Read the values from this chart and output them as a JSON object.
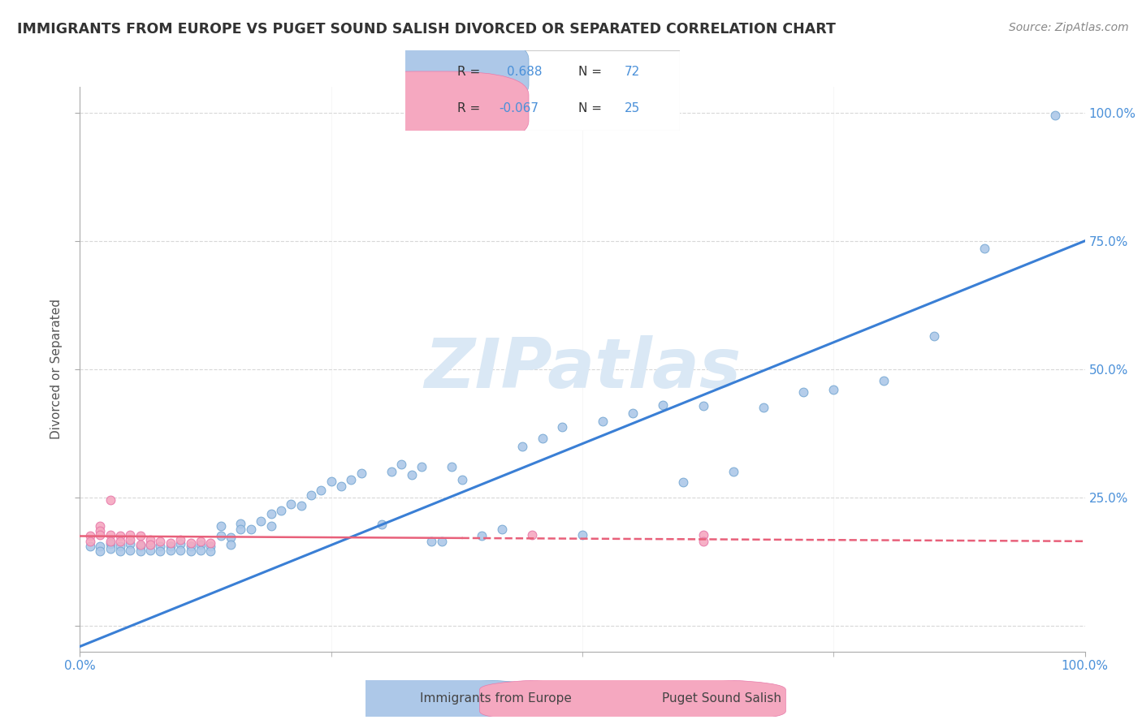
{
  "title": "IMMIGRANTS FROM EUROPE VS PUGET SOUND SALISH DIVORCED OR SEPARATED CORRELATION CHART",
  "source_text": "Source: ZipAtlas.com",
  "ylabel": "Divorced or Separated",
  "blue_R": 0.688,
  "blue_N": 72,
  "pink_R": -0.067,
  "pink_N": 25,
  "blue_color": "#adc8e8",
  "pink_color": "#f5a8c0",
  "blue_edge_color": "#7aaad4",
  "pink_edge_color": "#e87aaa",
  "blue_line_color": "#3a7fd5",
  "pink_line_color": "#e8607a",
  "watermark_text": "ZIPatlas",
  "watermark_color": "#dae8f5",
  "legend_border_color": "#cccccc",
  "grid_color": "#d8d8d8",
  "tick_label_color": "#4a90d9",
  "title_color": "#333333",
  "source_color": "#888888",
  "axis_label_color": "#555555",
  "blue_x": [
    0.01,
    0.02,
    0.02,
    0.03,
    0.03,
    0.04,
    0.04,
    0.05,
    0.05,
    0.06,
    0.06,
    0.07,
    0.07,
    0.08,
    0.08,
    0.09,
    0.09,
    0.1,
    0.1,
    0.11,
    0.11,
    0.12,
    0.12,
    0.13,
    0.13,
    0.14,
    0.14,
    0.15,
    0.15,
    0.16,
    0.16,
    0.17,
    0.18,
    0.19,
    0.19,
    0.2,
    0.21,
    0.22,
    0.23,
    0.24,
    0.25,
    0.26,
    0.27,
    0.28,
    0.3,
    0.31,
    0.32,
    0.33,
    0.34,
    0.35,
    0.36,
    0.37,
    0.38,
    0.4,
    0.42,
    0.44,
    0.46,
    0.48,
    0.5,
    0.52,
    0.55,
    0.58,
    0.6,
    0.62,
    0.65,
    0.68,
    0.72,
    0.75,
    0.8,
    0.85,
    0.9,
    0.97
  ],
  "blue_y": [
    0.155,
    0.155,
    0.145,
    0.16,
    0.15,
    0.155,
    0.145,
    0.16,
    0.148,
    0.155,
    0.145,
    0.158,
    0.148,
    0.155,
    0.145,
    0.155,
    0.148,
    0.16,
    0.148,
    0.155,
    0.145,
    0.158,
    0.148,
    0.155,
    0.145,
    0.195,
    0.175,
    0.172,
    0.158,
    0.2,
    0.188,
    0.188,
    0.205,
    0.218,
    0.195,
    0.225,
    0.238,
    0.235,
    0.255,
    0.265,
    0.282,
    0.272,
    0.285,
    0.298,
    0.198,
    0.3,
    0.315,
    0.295,
    0.31,
    0.165,
    0.165,
    0.31,
    0.285,
    0.175,
    0.188,
    0.35,
    0.365,
    0.388,
    0.178,
    0.398,
    0.415,
    0.43,
    0.28,
    0.428,
    0.3,
    0.425,
    0.455,
    0.46,
    0.478,
    0.565,
    0.735,
    0.995
  ],
  "pink_x": [
    0.01,
    0.01,
    0.02,
    0.02,
    0.02,
    0.03,
    0.03,
    0.04,
    0.04,
    0.05,
    0.05,
    0.06,
    0.06,
    0.07,
    0.07,
    0.08,
    0.09,
    0.1,
    0.11,
    0.12,
    0.13,
    0.45,
    0.62,
    0.62,
    0.03
  ],
  "pink_y": [
    0.175,
    0.165,
    0.195,
    0.185,
    0.178,
    0.178,
    0.165,
    0.175,
    0.165,
    0.178,
    0.168,
    0.175,
    0.158,
    0.168,
    0.158,
    0.165,
    0.162,
    0.168,
    0.162,
    0.165,
    0.162,
    0.178,
    0.178,
    0.165,
    0.245
  ],
  "blue_line_x0": 0.0,
  "blue_line_y0": -0.04,
  "blue_line_x1": 1.0,
  "blue_line_y1": 0.75,
  "pink_line_x0": 0.0,
  "pink_line_y0": 0.175,
  "pink_line_x1": 1.0,
  "pink_line_y1": 0.165,
  "xlim": [
    0.0,
    1.0
  ],
  "ylim": [
    -0.05,
    1.05
  ],
  "yticks": [
    0.0,
    0.25,
    0.5,
    0.75,
    1.0
  ],
  "ytick_labels_right": [
    "",
    "25.0%",
    "50.0%",
    "75.0%",
    "100.0%"
  ],
  "xticks": [
    0.0,
    1.0
  ],
  "xtick_labels": [
    "0.0%",
    "100.0%"
  ],
  "legend_blue_label": "Immigrants from Europe",
  "legend_pink_label": "Puget Sound Salish"
}
